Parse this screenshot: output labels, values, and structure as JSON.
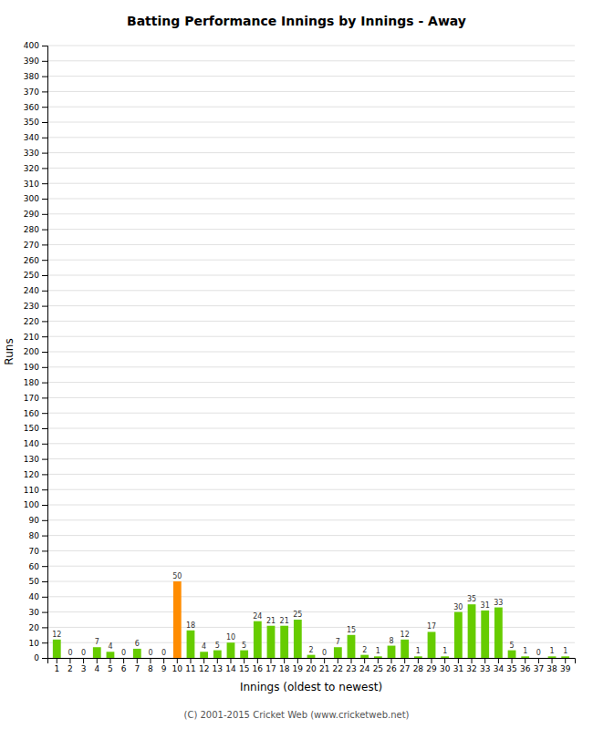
{
  "chart_data": {
    "type": "bar",
    "title": "Batting Performance Innings by Innings - Away",
    "x_label": "Innings (oldest to newest)",
    "y_label": "Runs",
    "categories": [
      "1",
      "2",
      "3",
      "4",
      "5",
      "6",
      "7",
      "8",
      "9",
      "10",
      "11",
      "12",
      "13",
      "14",
      "15",
      "16",
      "17",
      "18",
      "19",
      "20",
      "21",
      "22",
      "23",
      "24",
      "25",
      "26",
      "27",
      "28",
      "29",
      "30",
      "31",
      "32",
      "33",
      "34",
      "35",
      "36",
      "37",
      "38",
      "39"
    ],
    "values": [
      12,
      0,
      0,
      7,
      4,
      0,
      6,
      0,
      0,
      50,
      18,
      4,
      5,
      10,
      5,
      24,
      21,
      21,
      25,
      2,
      0,
      7,
      15,
      2,
      1,
      8,
      12,
      1,
      17,
      1,
      30,
      35,
      31,
      33,
      5,
      1,
      0,
      1,
      1
    ],
    "colors": [
      "#66cc00",
      "#66cc00",
      "#66cc00",
      "#66cc00",
      "#66cc00",
      "#66cc00",
      "#66cc00",
      "#66cc00",
      "#66cc00",
      "#ff8c00",
      "#66cc00",
      "#66cc00",
      "#66cc00",
      "#66cc00",
      "#66cc00",
      "#66cc00",
      "#66cc00",
      "#66cc00",
      "#66cc00",
      "#66cc00",
      "#66cc00",
      "#66cc00",
      "#66cc00",
      "#66cc00",
      "#66cc00",
      "#66cc00",
      "#66cc00",
      "#66cc00",
      "#66cc00",
      "#66cc00",
      "#66cc00",
      "#66cc00",
      "#66cc00",
      "#66cc00",
      "#66cc00",
      "#66cc00",
      "#66cc00",
      "#66cc00",
      "#66cc00"
    ],
    "ylim": [
      0,
      400
    ],
    "yticks": [
      0,
      10,
      20,
      30,
      40,
      50,
      60,
      70,
      80,
      90,
      100,
      110,
      120,
      130,
      140,
      150,
      160,
      170,
      180,
      190,
      200,
      210,
      220,
      230,
      240,
      250,
      260,
      270,
      280,
      290,
      300,
      310,
      320,
      330,
      340,
      350,
      360,
      370,
      380,
      390,
      400
    ],
    "grid": true,
    "data_labels": true,
    "annotations": [
      "(C) 2001-2015 Cricket Web (www.cricketweb.net)"
    ]
  }
}
